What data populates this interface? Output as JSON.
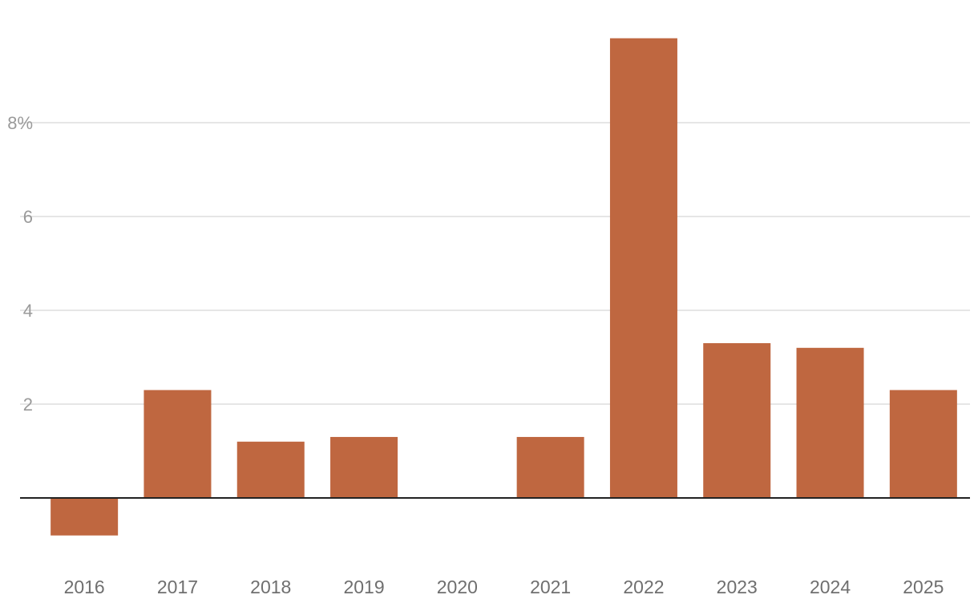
{
  "chart_data": {
    "type": "bar",
    "categories": [
      "2016",
      "2017",
      "2018",
      "2019",
      "2020",
      "2021",
      "2022",
      "2023",
      "2024",
      "2025"
    ],
    "values": [
      -0.8,
      2.3,
      1.2,
      1.3,
      0.0,
      1.3,
      9.8,
      3.3,
      3.2,
      2.3
    ],
    "yticks": [
      2,
      4,
      6,
      8
    ],
    "ytick_labels": [
      "2",
      "4",
      "6",
      "8%"
    ],
    "ylim": [
      -1.3,
      10.5
    ],
    "grid": true,
    "bar_color": "#bf6740"
  }
}
